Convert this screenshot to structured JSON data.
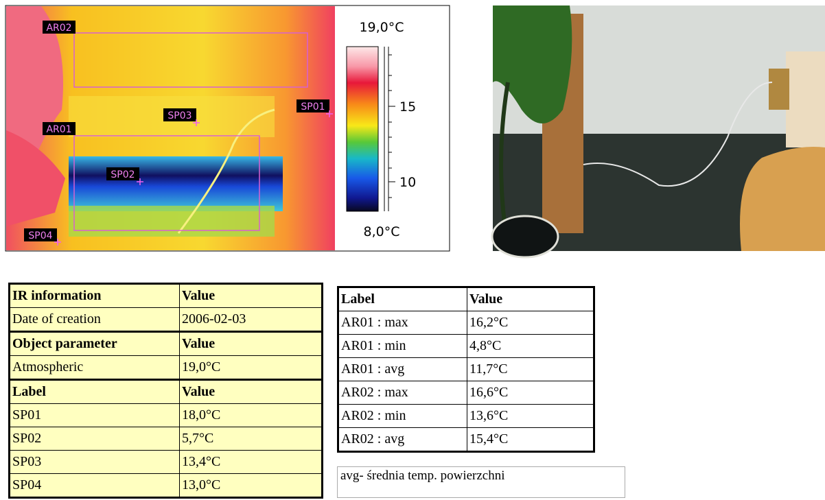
{
  "thermal_image": {
    "scale_max": "19,0°C",
    "scale_min": "8,0°C",
    "scale_ticks": [
      "15",
      "10"
    ],
    "markers": [
      {
        "label": "AR02"
      },
      {
        "label": "AR01"
      },
      {
        "label": "SP03"
      },
      {
        "label": "SP01"
      },
      {
        "label": "SP02"
      },
      {
        "label": "SP04"
      }
    ]
  },
  "ir_table": {
    "sections": [
      {
        "header": [
          "IR information",
          "Value"
        ],
        "rows": [
          [
            "Date of creation",
            "2006-02-03"
          ]
        ]
      },
      {
        "header": [
          "Object parameter",
          "Value"
        ],
        "rows": [
          [
            "Atmospheric",
            "19,0°C"
          ]
        ]
      },
      {
        "header": [
          "Label",
          "Value"
        ],
        "rows": [
          [
            "SP01",
            "18,0°C"
          ],
          [
            "SP02",
            "5,7°C"
          ],
          [
            "SP03",
            "13,4°C"
          ],
          [
            "SP04",
            "13,0°C"
          ]
        ]
      }
    ]
  },
  "area_table": {
    "header": [
      "Label",
      "Value"
    ],
    "rows": [
      [
        "AR01 : max",
        "16,2°C"
      ],
      [
        "AR01 : min",
        "4,8°C"
      ],
      [
        "AR01 : avg",
        "11,7°C"
      ],
      [
        "AR02 : max",
        "16,6°C"
      ],
      [
        "AR02 : min",
        "13,6°C"
      ],
      [
        "AR02 : avg",
        "15,4°C"
      ]
    ]
  },
  "note": "avg- średnia temp. powierzchni"
}
